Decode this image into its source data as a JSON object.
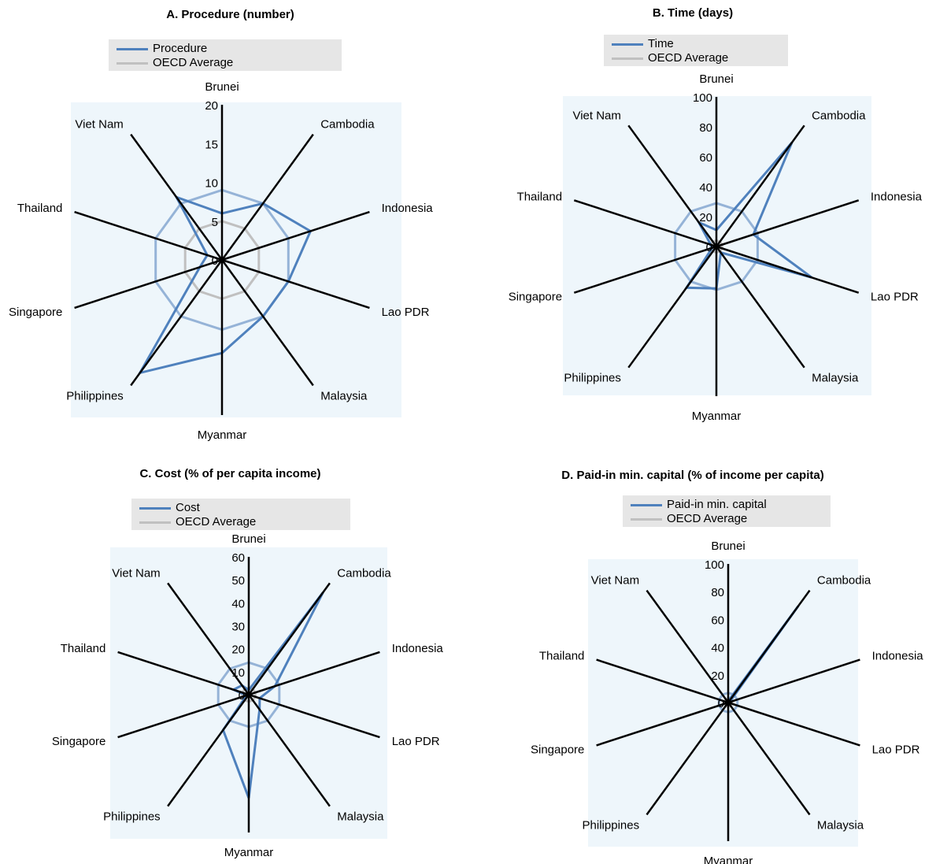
{
  "chart_data": [
    {
      "type": "radar",
      "title": "A. Procedure (number)",
      "axes": [
        "Brunei",
        "Cambodia",
        "Indonesia",
        "Lao PDR",
        "Malaysia",
        "Myanmar",
        "Philippines",
        "Singapore",
        "Thailand",
        "Viet Nam"
      ],
      "rlim": [
        0,
        20
      ],
      "ticks": [
        "0",
        "5",
        "10",
        "15",
        "20"
      ],
      "series": [
        {
          "name": "Procedure",
          "color": "#4f81bd",
          "values": [
            6,
            9,
            12,
            9,
            9,
            12,
            18,
            3,
            2,
            10
          ]
        },
        {
          "name": "OECD  Average",
          "color": "#c0c0c0",
          "values": [
            5,
            5,
            5,
            5,
            5,
            5,
            5,
            5,
            5,
            5
          ]
        }
      ],
      "ring_value": 9,
      "legend_position": "top"
    },
    {
      "type": "radar",
      "title": "B. Time (days)",
      "axes": [
        "Brunei",
        "Cambodia",
        "Indonesia",
        "Lao PDR",
        "Malaysia",
        "Myanmar",
        "Philippines",
        "Singapore",
        "Thailand",
        "Viet Nam"
      ],
      "rlim": [
        0,
        100
      ],
      "ticks": [
        "0",
        "20",
        "40",
        "60",
        "80",
        "100"
      ],
      "series": [
        {
          "name": "Time",
          "color": "#4f81bd",
          "values": [
            11,
            86,
            26,
            67,
            5,
            28,
            34,
            3,
            4,
            20
          ]
        },
        {
          "name": "OECD  Average",
          "color": "#c0c0c0",
          "values": [
            4,
            4,
            4,
            4,
            4,
            4,
            4,
            4,
            4,
            4
          ]
        }
      ],
      "ring_value": 29,
      "legend_position": "top"
    },
    {
      "type": "radar",
      "title": "C. Cost (% of per capita income)",
      "axes": [
        "Brunei",
        "Cambodia",
        "Indonesia",
        "Lao PDR",
        "Malaysia",
        "Myanmar",
        "Philippines",
        "Singapore",
        "Thailand",
        "Viet Nam"
      ],
      "rlim": [
        0,
        60
      ],
      "ticks": [
        "0",
        "10",
        "20",
        "30",
        "40",
        "50",
        "60"
      ],
      "series": [
        {
          "name": "Cost",
          "color": "#4f81bd",
          "values": [
            2,
            55,
            12,
            5,
            8,
            45,
            19,
            1,
            7,
            5
          ]
        },
        {
          "name": "OECD  Average",
          "color": "#c0c0c0",
          "values": [
            3,
            3,
            3,
            3,
            3,
            3,
            3,
            3,
            3,
            3
          ]
        }
      ],
      "ring_value": 14,
      "legend_position": "top"
    },
    {
      "type": "radar",
      "title": "D. Paid-in min. capital (% of income per capita)",
      "axes": [
        "Brunei",
        "Cambodia",
        "Indonesia",
        "Lao PDR",
        "Malaysia",
        "Myanmar",
        "Philippines",
        "Singapore",
        "Thailand",
        "Viet Nam"
      ],
      "rlim": [
        0,
        100
      ],
      "ticks": [
        "0",
        "20",
        "40",
        "60",
        "80",
        "100"
      ],
      "series": [
        {
          "name": "Paid-in min. capital",
          "color": "#4f81bd",
          "values": [
            1,
            86,
            1,
            1,
            1,
            1,
            1,
            1,
            1,
            1
          ]
        },
        {
          "name": "OECD  Average",
          "color": "#c0c0c0",
          "values": [
            3,
            3,
            3,
            3,
            3,
            3,
            3,
            3,
            3,
            3
          ]
        }
      ],
      "ring_value": 7,
      "legend_position": "top"
    }
  ],
  "colors": {
    "plot_background": "#eef6fb",
    "axis": "#000000",
    "ring": "#95b3d7",
    "series": "#4f81bd",
    "oecd": "#c0c0c0",
    "legend_background": "#e6e6e6"
  }
}
